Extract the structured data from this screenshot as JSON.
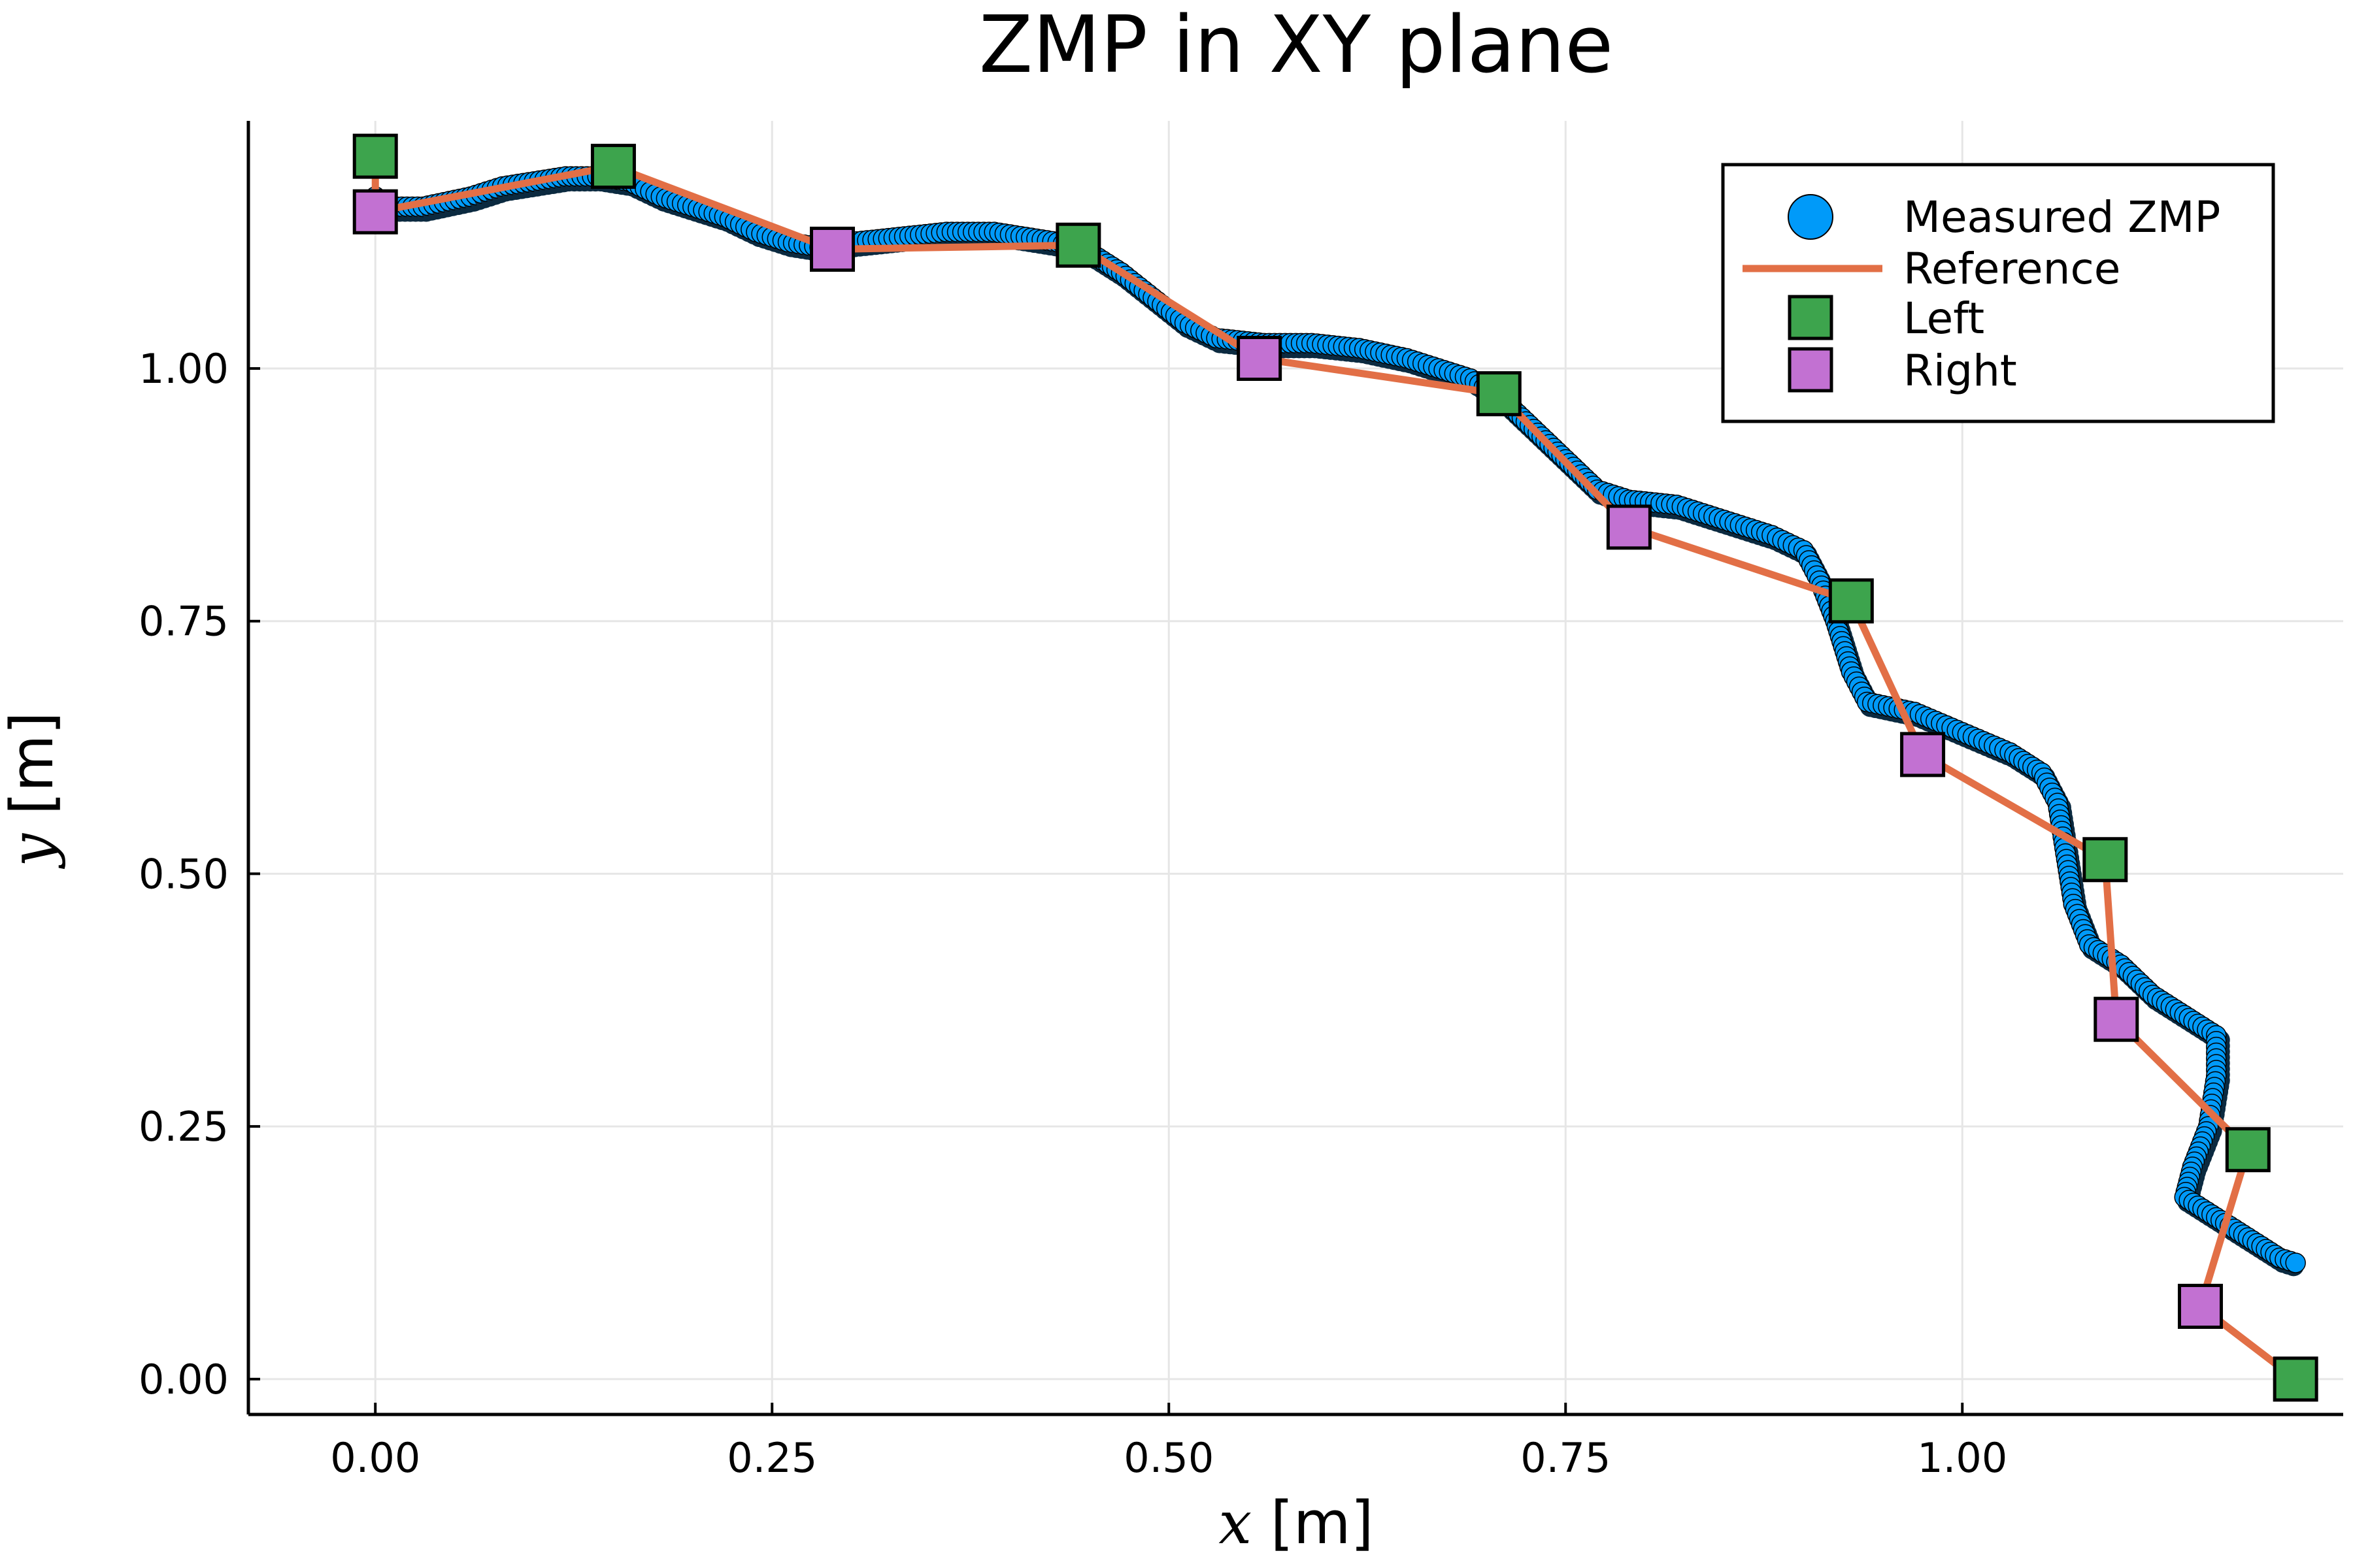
{
  "chart_data": {
    "type": "scatter",
    "title": "ZMP in XY plane",
    "xlabel": {
      "var": "x",
      "unit": " [m]"
    },
    "ylabel": {
      "var": "y",
      "unit": " [m]"
    },
    "xlim": [
      -0.08,
      1.24
    ],
    "ylim": [
      -0.035,
      1.245
    ],
    "xticks": [
      0.0,
      0.25,
      0.5,
      0.75,
      1.0
    ],
    "xtick_labels": [
      "0.00",
      "0.25",
      "0.50",
      "0.75",
      "1.00"
    ],
    "yticks": [
      0.0,
      0.25,
      0.5,
      0.75,
      1.0
    ],
    "ytick_labels": [
      "0.00",
      "0.25",
      "0.50",
      "0.75",
      "1.00"
    ],
    "grid": true,
    "legend_position": "top-right",
    "series": [
      {
        "name": "Measured ZMP",
        "kind": "scatter",
        "color": "#009af9",
        "edge_color": "#000000",
        "points": [
          [
            0.0,
            1.16
          ],
          [
            0.0,
            1.17
          ],
          [
            0.01,
            1.16
          ],
          [
            0.03,
            1.16
          ],
          [
            0.06,
            1.17
          ],
          [
            0.08,
            1.18
          ],
          [
            0.1,
            1.185
          ],
          [
            0.12,
            1.19
          ],
          [
            0.14,
            1.19
          ],
          [
            0.16,
            1.185
          ],
          [
            0.18,
            1.17
          ],
          [
            0.2,
            1.16
          ],
          [
            0.22,
            1.15
          ],
          [
            0.24,
            1.135
          ],
          [
            0.26,
            1.125
          ],
          [
            0.28,
            1.12
          ],
          [
            0.3,
            1.125
          ],
          [
            0.33,
            1.13
          ],
          [
            0.36,
            1.135
          ],
          [
            0.39,
            1.135
          ],
          [
            0.41,
            1.13
          ],
          [
            0.43,
            1.125
          ],
          [
            0.45,
            1.115
          ],
          [
            0.47,
            1.095
          ],
          [
            0.49,
            1.07
          ],
          [
            0.51,
            1.045
          ],
          [
            0.53,
            1.03
          ],
          [
            0.56,
            1.025
          ],
          [
            0.59,
            1.025
          ],
          [
            0.62,
            1.02
          ],
          [
            0.65,
            1.01
          ],
          [
            0.67,
            1.0
          ],
          [
            0.69,
            0.99
          ],
          [
            0.71,
            0.97
          ],
          [
            0.73,
            0.94
          ],
          [
            0.75,
            0.91
          ],
          [
            0.77,
            0.88
          ],
          [
            0.79,
            0.87
          ],
          [
            0.82,
            0.865
          ],
          [
            0.85,
            0.85
          ],
          [
            0.88,
            0.835
          ],
          [
            0.9,
            0.82
          ],
          [
            0.91,
            0.79
          ],
          [
            0.92,
            0.75
          ],
          [
            0.93,
            0.7
          ],
          [
            0.94,
            0.67
          ],
          [
            0.97,
            0.66
          ],
          [
            1.0,
            0.64
          ],
          [
            1.03,
            0.62
          ],
          [
            1.05,
            0.6
          ],
          [
            1.06,
            0.57
          ],
          [
            1.065,
            0.52
          ],
          [
            1.07,
            0.47
          ],
          [
            1.08,
            0.43
          ],
          [
            1.1,
            0.41
          ],
          [
            1.12,
            0.38
          ],
          [
            1.14,
            0.36
          ],
          [
            1.16,
            0.34
          ],
          [
            1.16,
            0.3
          ],
          [
            1.155,
            0.25
          ],
          [
            1.145,
            0.21
          ],
          [
            1.14,
            0.18
          ],
          [
            1.16,
            0.16
          ],
          [
            1.18,
            0.14
          ],
          [
            1.2,
            0.12
          ],
          [
            1.21,
            0.115
          ]
        ]
      },
      {
        "name": "Reference",
        "kind": "line",
        "color": "#e26f46",
        "points": [
          [
            0.0,
            1.21
          ],
          [
            0.0,
            1.155
          ],
          [
            0.15,
            1.2
          ],
          [
            0.288,
            1.118
          ],
          [
            0.443,
            1.122
          ],
          [
            0.557,
            1.01
          ],
          [
            0.708,
            0.975
          ],
          [
            0.79,
            0.843
          ],
          [
            0.93,
            0.77
          ],
          [
            0.975,
            0.618
          ],
          [
            1.09,
            0.514
          ],
          [
            1.097,
            0.356
          ],
          [
            1.18,
            0.227
          ],
          [
            1.15,
            0.072
          ],
          [
            1.21,
            0.0
          ]
        ]
      },
      {
        "name": "Left",
        "kind": "scatter",
        "marker": "square",
        "color": "#3da44d",
        "points": [
          [
            0.0,
            1.21
          ],
          [
            0.15,
            1.2
          ],
          [
            0.443,
            1.122
          ],
          [
            0.708,
            0.975
          ],
          [
            0.93,
            0.77
          ],
          [
            1.09,
            0.514
          ],
          [
            1.18,
            0.227
          ],
          [
            1.21,
            0.0
          ]
        ]
      },
      {
        "name": "Right",
        "kind": "scatter",
        "marker": "square",
        "color": "#c271d2",
        "points": [
          [
            0.0,
            1.155
          ],
          [
            0.288,
            1.118
          ],
          [
            0.557,
            1.01
          ],
          [
            0.79,
            0.843
          ],
          [
            0.975,
            0.618
          ],
          [
            1.097,
            0.356
          ],
          [
            1.15,
            0.072
          ]
        ]
      }
    ]
  }
}
